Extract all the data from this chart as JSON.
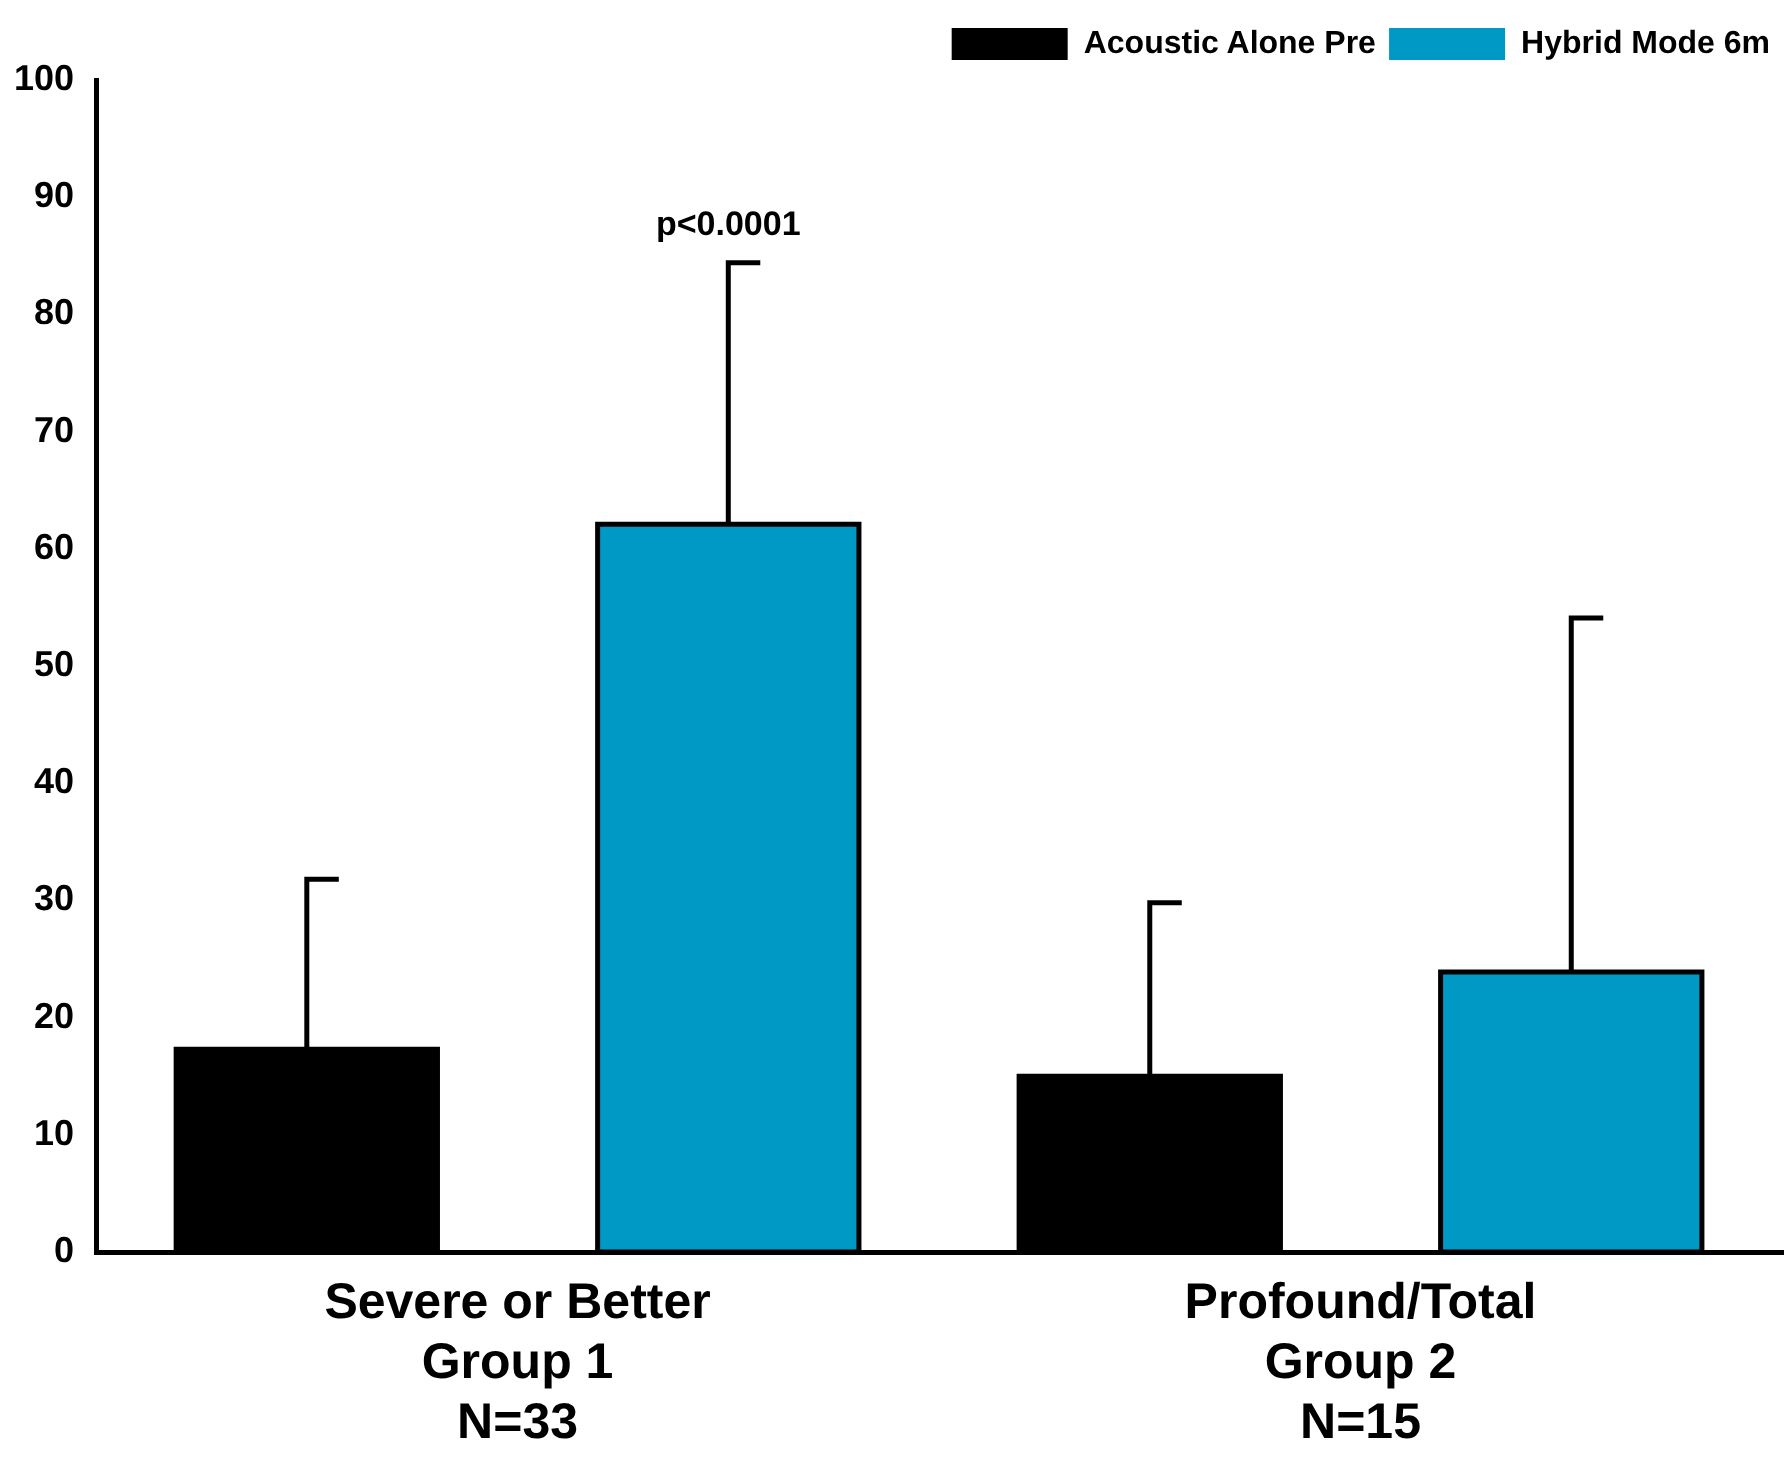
{
  "chart_data": {
    "type": "bar",
    "categories": [
      "Severe or Better\nGroup 1\nN=33",
      "Profound/Total\nGroup 2\nN=15"
    ],
    "series": [
      {
        "name": "Acoustic Alone Pre",
        "color": "#000000",
        "values": [
          17.3,
          15.0
        ],
        "errors": [
          [
            17.3,
            31.8
          ],
          [
            15.0,
            29.8
          ]
        ]
      },
      {
        "name": "Hybrid Mode 6m",
        "color": "#0099c6",
        "values": [
          62.1,
          23.9
        ],
        "errors": [
          [
            62.1,
            84.4
          ],
          [
            23.9,
            54.1
          ]
        ]
      }
    ],
    "ylim": [
      0,
      100
    ],
    "yticks": [
      0,
      10,
      20,
      30,
      40,
      50,
      60,
      70,
      80,
      90,
      100
    ],
    "grid": false,
    "legend": "top right",
    "annotations": [
      "p<0.0001"
    ]
  }
}
